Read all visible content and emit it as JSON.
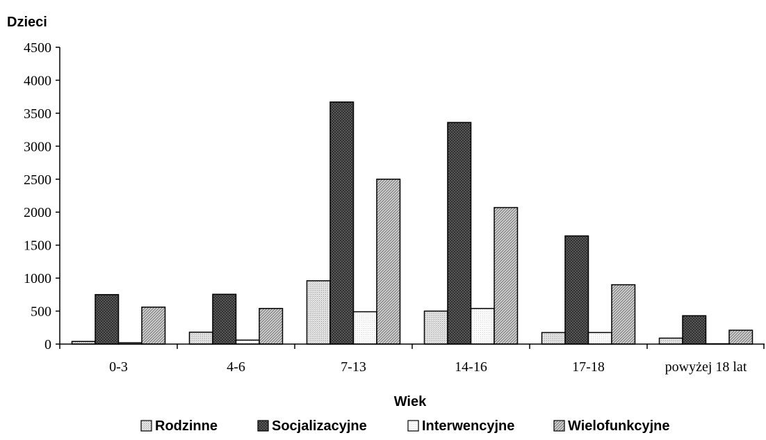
{
  "chart_data": {
    "type": "bar",
    "ylabel": "Dzieci",
    "xlabel": "Wiek",
    "ylim": [
      0,
      4500
    ],
    "yticks": [
      0,
      500,
      1000,
      1500,
      2000,
      2500,
      3000,
      3500,
      4000,
      4500
    ],
    "categories": [
      "0-3",
      "4-6",
      "7-13",
      "14-16",
      "17-18",
      "powyżej 18 lat"
    ],
    "series": [
      {
        "name": "Rodzinne",
        "values": [
          40,
          180,
          960,
          500,
          175,
          90
        ],
        "color": "#d4d4d4",
        "pattern": "light-dots"
      },
      {
        "name": "Socjalizacyjne",
        "values": [
          750,
          755,
          3670,
          3360,
          1640,
          430
        ],
        "color": "#555555",
        "pattern": "dark-cross"
      },
      {
        "name": "Interwencyjne",
        "values": [
          20,
          60,
          490,
          540,
          175,
          5
        ],
        "color": "#f6f6f6",
        "pattern": "fine-dots"
      },
      {
        "name": "Wielofunkcyjne",
        "values": [
          560,
          540,
          2500,
          2070,
          900,
          210
        ],
        "color": "#b8b8b8",
        "pattern": "diagonal"
      }
    ],
    "grid": false,
    "legend_position": "bottom"
  }
}
